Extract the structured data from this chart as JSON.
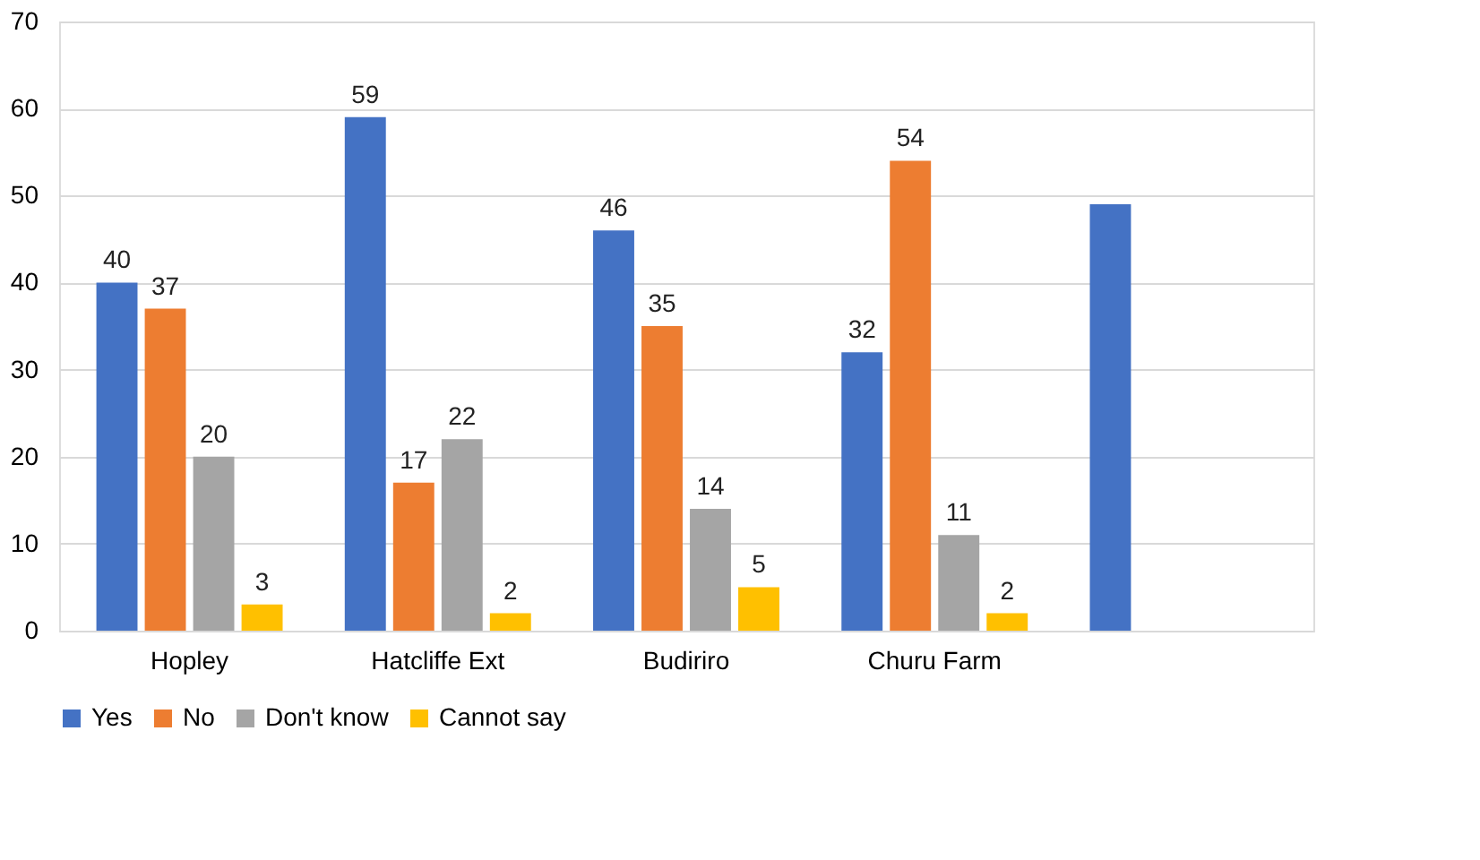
{
  "chart_data": {
    "type": "bar",
    "categories": [
      "Hopley",
      "Hatcliffe Ext",
      "Budiriro",
      "Churu Farm",
      null
    ],
    "series": [
      {
        "name": "Yes",
        "color": "#4472c4",
        "values": [
          40,
          59,
          46,
          32,
          49
        ],
        "value_labels": [
          "40",
          "59",
          "46",
          "32",
          null
        ]
      },
      {
        "name": "No",
        "color": "#ed7d31",
        "values": [
          37,
          17,
          35,
          54,
          null
        ],
        "value_labels": [
          "37",
          "17",
          "35",
          "54",
          null
        ]
      },
      {
        "name": "Don't know",
        "color": "#a5a5a5",
        "values": [
          20,
          22,
          14,
          11,
          null
        ],
        "value_labels": [
          "20",
          "22",
          "14",
          "11",
          null
        ]
      },
      {
        "name": "Cannot say",
        "color": "#ffc000",
        "values": [
          3,
          2,
          5,
          2,
          null
        ],
        "value_labels": [
          "3",
          "2",
          "5",
          "2",
          null
        ]
      }
    ],
    "ylim": [
      0,
      70
    ],
    "yticks": [
      0,
      10,
      20,
      30,
      40,
      50,
      60,
      70
    ],
    "grid": "y",
    "legend": "bottom"
  }
}
